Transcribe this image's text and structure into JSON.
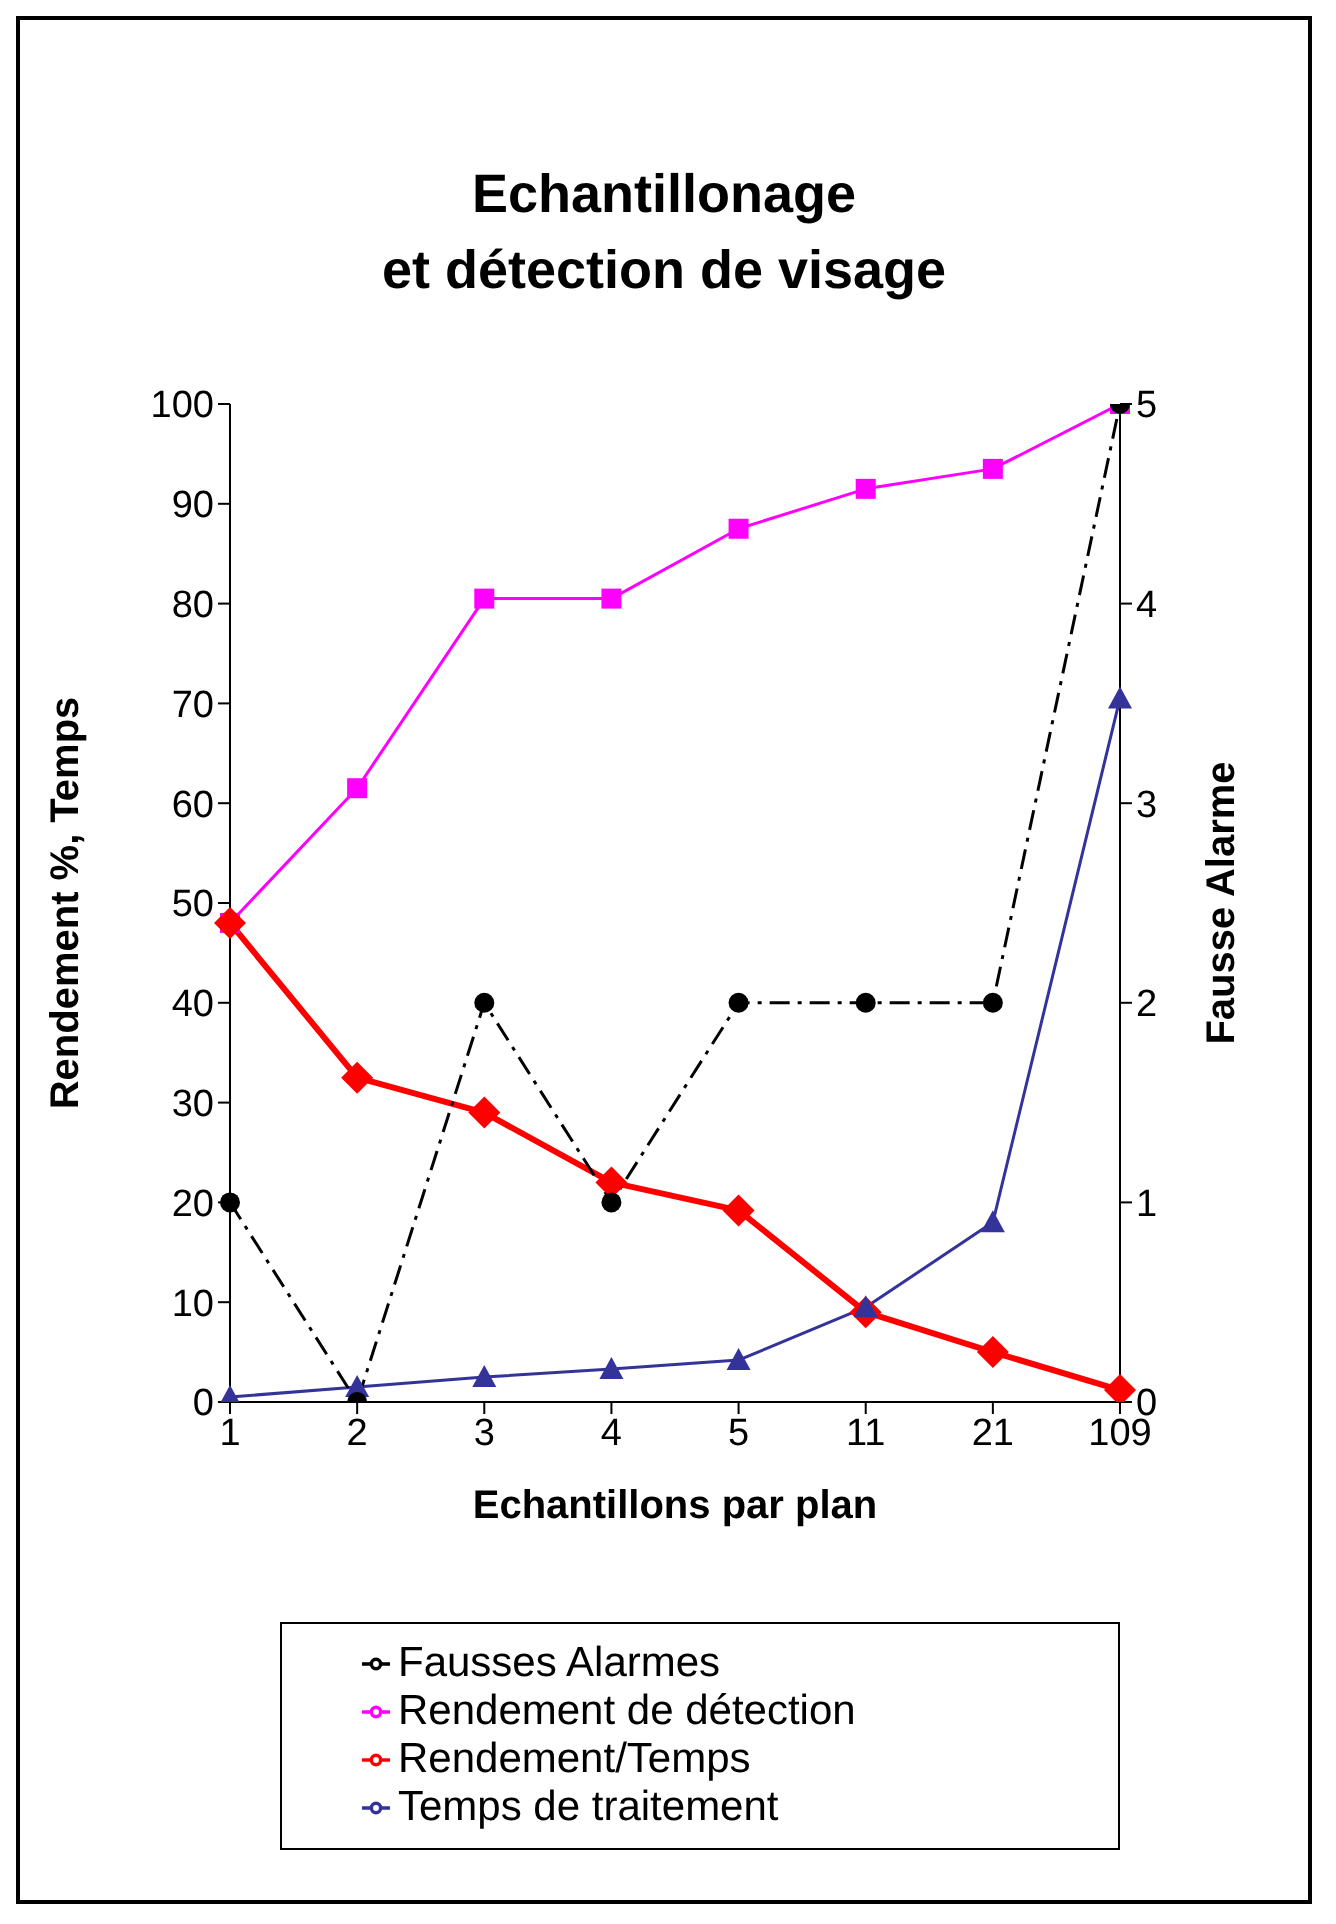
{
  "chart_data": {
    "type": "line",
    "title": "Echantillonage\net détection de visage",
    "xlabel": "Echantillons par plan",
    "ylabel": "Rendement %, Temps",
    "y2label": "Fausse Alarme",
    "categories": [
      "1",
      "2",
      "3",
      "4",
      "5",
      "11",
      "21",
      "109"
    ],
    "series": [
      {
        "name": "Rendement de détection",
        "color": "#ff00ff",
        "marker": "square",
        "line_style": "solid",
        "values": [
          48,
          61.5,
          80.5,
          80.5,
          87.5,
          91.5,
          93.5,
          100
        ]
      },
      {
        "name": "Rendement/Temps",
        "color": "#ff0000",
        "marker": "diamond",
        "line_style": "solid",
        "values": [
          48,
          32.5,
          29,
          22,
          19.2,
          9,
          5,
          1.2
        ]
      },
      {
        "name": "Temps de traitement",
        "color": "#333399",
        "marker": "triangle",
        "line_style": "solid",
        "values": [
          0.5,
          1.5,
          2.5,
          3.3,
          4.2,
          9.5,
          18,
          70.5
        ]
      },
      {
        "name": "Fausses Alarmes",
        "color": "#000000",
        "marker": "circle",
        "line_style": "dashed",
        "axis": "y2",
        "values": [
          1,
          0,
          2,
          1,
          2,
          2,
          2,
          5
        ]
      }
    ],
    "ylim": [
      0,
      100
    ],
    "yticks": [
      0,
      10,
      20,
      30,
      40,
      50,
      60,
      70,
      80,
      90,
      100
    ],
    "y2lim": [
      0,
      5
    ],
    "y2ticks": [
      0,
      1,
      2,
      3,
      4,
      5
    ],
    "grid": false,
    "legend": "bottom"
  }
}
